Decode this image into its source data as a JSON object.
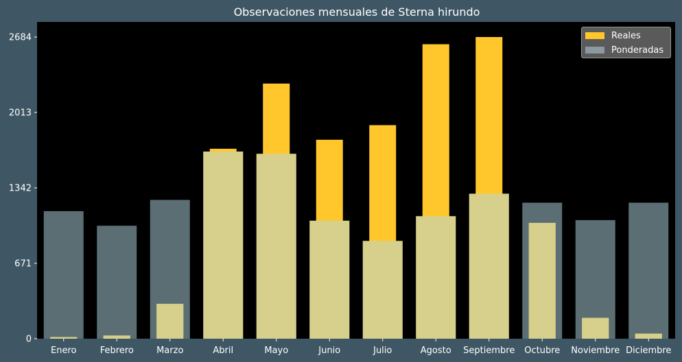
{
  "chart_data": {
    "type": "bar",
    "title": "Observaciones mensuales de Sterna hirundo",
    "xlabel": "",
    "ylabel": "",
    "categories": [
      "Enero",
      "Febrero",
      "Marzo",
      "Abril",
      "Mayo",
      "Junio",
      "Julio",
      "Agosto",
      "Septiembre",
      "Octubre",
      "Noviembre",
      "Diciembre"
    ],
    "series": [
      {
        "name": "Reales",
        "color": "#ffc72c",
        "overlap_color": "#d6d08c",
        "values": [
          15,
          28,
          310,
          1690,
          2270,
          1770,
          1900,
          2620,
          2684,
          1030,
          185,
          45
        ]
      },
      {
        "name": "Ponderadas",
        "color": "#5a6e74",
        "legend_color": "#8a9a9e",
        "values": [
          1135,
          1005,
          1235,
          1665,
          1645,
          1050,
          870,
          1090,
          1290,
          1210,
          1055,
          1210
        ]
      }
    ],
    "yticks": [
      0,
      671,
      1342,
      2013,
      2684
    ],
    "ylim": [
      0,
      2684
    ],
    "grid": false,
    "legend_position": "top-right",
    "background": "#000000",
    "figure_background": "#3f5764"
  }
}
